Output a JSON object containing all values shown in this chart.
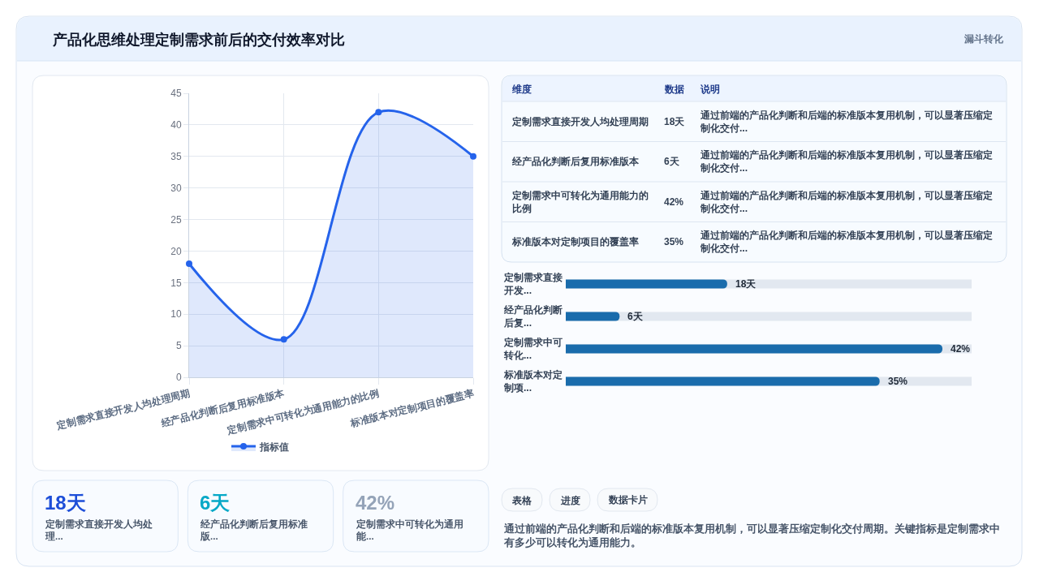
{
  "chart_data": [
    {
      "type": "other",
      "title": "产品化思维处理定制需求前后的交付效率对比",
      "annotations": [
        "漏斗转化"
      ]
    },
    {
      "type": "area",
      "categories": [
        "定制需求直接开发人均处理周期",
        "经产品化判断后复用标准版本",
        "定制需求中可转化为通用能力的比例",
        "标准版本对定制项目的覆盖率"
      ],
      "series": [
        {
          "name": "指标值",
          "color": "#2563eb",
          "values": [
            18,
            6,
            42,
            35
          ]
        }
      ],
      "ylim": [
        0,
        45
      ],
      "yticks": [
        0,
        5,
        10,
        15,
        20,
        25,
        30,
        35,
        40,
        45
      ],
      "grid": true,
      "legend": "bottom",
      "marker": "circle"
    },
    {
      "type": "other",
      "categories": [
        "定制需求直接开发人均处理周期",
        "经产品化判断后复用标准版本",
        "定制需求中可转化为通用能力的比例",
        "标准版本对定制项目的覆盖率"
      ],
      "value_labels": [
        "18天",
        "6天",
        "42%",
        "35%"
      ],
      "annotations": [
        "维度",
        "数据",
        "说明",
        "通过前端的产品化判断和后端的标准版本复用机制，可以显著压缩定制化交付...",
        "通过前端的产品化判断和后端的标准版本复用机制，可以显著压缩定制化交付...",
        "通过前端的产品化判断和后端的标准版本复用机制，可以显著压缩定制化交付...",
        "通过前端的产品化判断和后端的标准版本复用机制，可以显著压缩定制化交付..."
      ]
    },
    {
      "type": "bar",
      "orientation": "horizontal",
      "categories": [
        "定制需求直接开发...",
        "经产品化判断后复...",
        "定制需求中可转化...",
        "标准版本对定制项..."
      ],
      "values": [
        18,
        6,
        42,
        35
      ],
      "value_labels": [
        "18天",
        "6天",
        "42%",
        "35%"
      ],
      "color": "#1a6cac",
      "tick_labels": "y"
    },
    {
      "type": "other",
      "categories": [
        "18天",
        "6天",
        "42%"
      ],
      "colors": [
        "#1d4ed8",
        "#06a8c7",
        "#94a3b8"
      ],
      "annotations": [
        "定制需求直接开发人均处理...",
        "经产品化判断后复用标准版...",
        "定制需求中可转化为通用能..."
      ]
    },
    {
      "type": "other",
      "categories": [
        "表格",
        "进度",
        "数据卡片"
      ],
      "annotations": [
        "通过前端的产品化判断和后端的标准版本复用机制，可以显著压缩定制化交付周期。关键指标是定制需求中有多少可以转化为通用能力。"
      ]
    }
  ]
}
